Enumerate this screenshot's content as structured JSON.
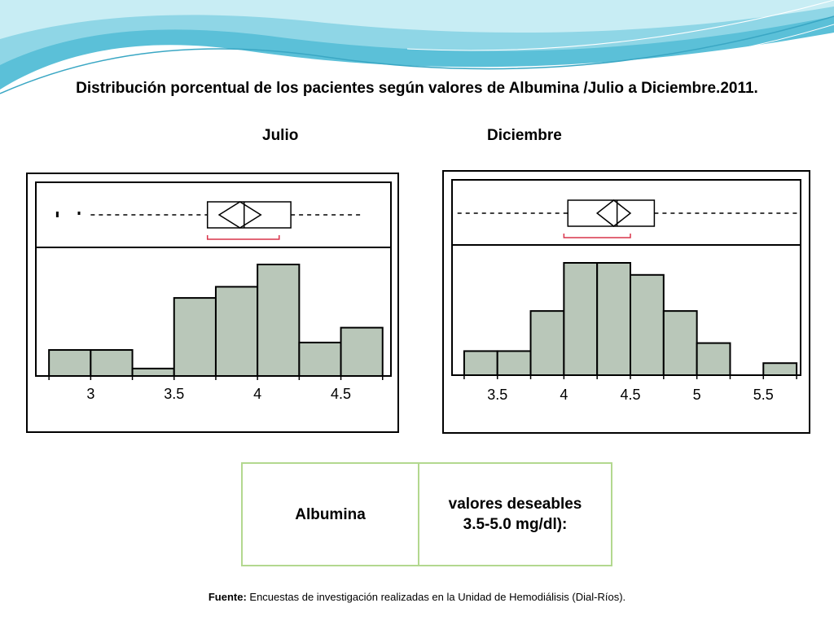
{
  "title": "Distribución porcentual de los pacientes según valores de Albumina /Julio a Diciembre.2011.",
  "chart_data": [
    {
      "type": "histogram",
      "title": "Julio",
      "xticks": [
        3,
        3.5,
        4,
        4.5
      ],
      "bins": [
        {
          "from": 2.75,
          "to": 3.0,
          "value": 7
        },
        {
          "from": 3.0,
          "to": 3.25,
          "value": 7
        },
        {
          "from": 3.25,
          "to": 3.5,
          "value": 2
        },
        {
          "from": 3.5,
          "to": 3.75,
          "value": 21
        },
        {
          "from": 3.75,
          "to": 4.0,
          "value": 24
        },
        {
          "from": 4.0,
          "to": 4.25,
          "value": 30
        },
        {
          "from": 4.25,
          "to": 4.5,
          "value": 9
        },
        {
          "from": 4.5,
          "to": 4.75,
          "value": 13
        }
      ],
      "boxplot": {
        "whisker_low": 3.0,
        "q1": 3.7,
        "median": 3.92,
        "q3": 4.2,
        "whisker_high": 4.62,
        "mean_diamond": [
          3.77,
          4.02
        ],
        "shortest_half": [
          3.7,
          4.13
        ],
        "outliers": [
          2.8,
          2.93
        ]
      }
    },
    {
      "type": "histogram",
      "title": "Diciembre",
      "xticks": [
        3.5,
        4,
        4.5,
        5,
        5.5
      ],
      "bins": [
        {
          "from": 3.25,
          "to": 3.5,
          "value": 6
        },
        {
          "from": 3.5,
          "to": 3.75,
          "value": 6
        },
        {
          "from": 3.75,
          "to": 4.0,
          "value": 16
        },
        {
          "from": 4.0,
          "to": 4.25,
          "value": 28
        },
        {
          "from": 4.25,
          "to": 4.5,
          "value": 28
        },
        {
          "from": 4.5,
          "to": 4.75,
          "value": 25
        },
        {
          "from": 4.75,
          "to": 5.0,
          "value": 16
        },
        {
          "from": 5.0,
          "to": 5.25,
          "value": 8
        },
        {
          "from": 5.25,
          "to": 5.5,
          "value": 0
        },
        {
          "from": 5.5,
          "to": 5.75,
          "value": 3
        }
      ],
      "boxplot": {
        "whisker_low": 3.2,
        "q1": 4.03,
        "median": 4.4,
        "q3": 4.68,
        "whisker_high": 5.78,
        "mean_diamond": [
          4.25,
          4.5
        ],
        "shortest_half": [
          4.0,
          4.5
        ],
        "outliers": []
      }
    }
  ],
  "table": {
    "left": "Albumina",
    "right_line1": "valores deseables",
    "right_line2": "3.5-5.0 mg/dl):"
  },
  "source": {
    "label": "Fuente:",
    "text": " Encuestas de investigación realizadas en la Unidad de Hemodiálisis (Dial-Ríos)."
  },
  "colors": {
    "bar_fill": "#b9c7b9",
    "shortest_half": "#d9334a",
    "table_border": "#b3d88f",
    "wave": "#5bc0d8"
  }
}
